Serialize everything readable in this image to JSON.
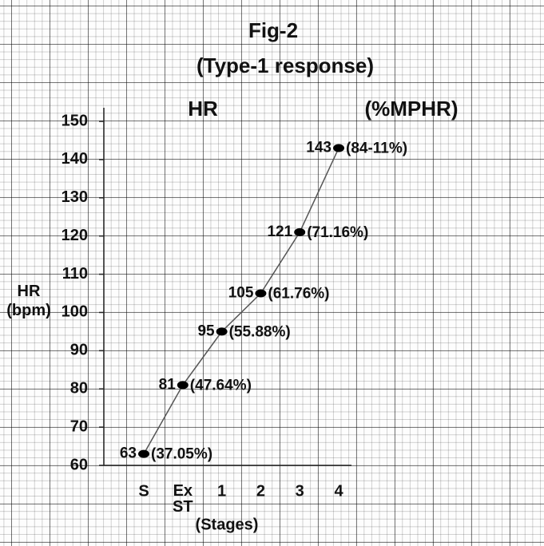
{
  "chart_data": {
    "type": "line",
    "title": "Fig-2",
    "subtitle": "(Type-1 response)",
    "left_header": "HR",
    "right_header": "(%MPHR)",
    "y_label": "HR (bpm)",
    "x_label": "(Stages)",
    "categories": [
      "S",
      "Ex ST",
      "1",
      "2",
      "3",
      "4"
    ],
    "values": [
      63,
      81,
      95,
      105,
      121,
      143
    ],
    "point_labels": [
      "(37.05%)",
      "(47.64%)",
      "(55.88%)",
      "(61.76%)",
      "(71.16%)",
      "(84-11%)"
    ],
    "color": "#555555",
    "ylim": [
      60,
      150
    ],
    "yticks": [
      60,
      70,
      80,
      90,
      100,
      110,
      120,
      130,
      140,
      150
    ]
  }
}
